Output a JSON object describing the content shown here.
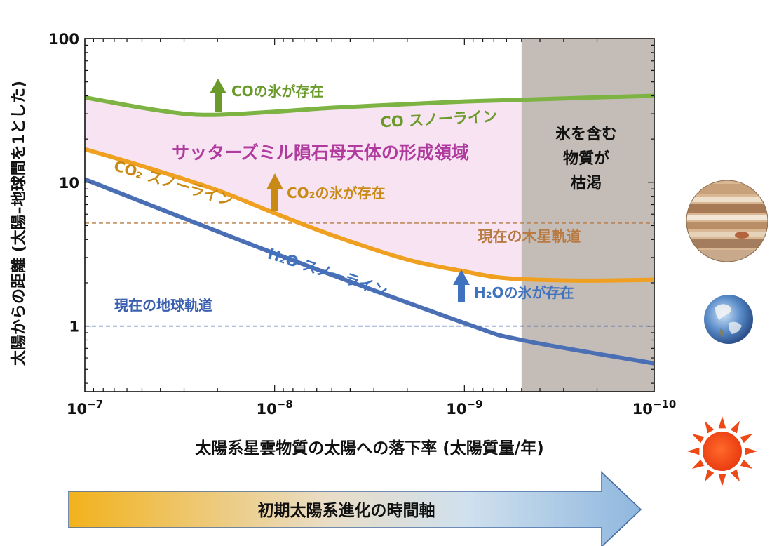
{
  "chart_data": {
    "type": "line",
    "title": "",
    "xlabel": "太陽系星雲物質の太陽への落下率 (太陽質量/年)",
    "ylabel": "太陽からの距離 (太陽–地球間を1とした)",
    "xscale": "log",
    "yscale": "log",
    "x_axis_reversed": true,
    "xlim": [
      1e-07,
      1e-10
    ],
    "ylim": [
      0.35,
      100
    ],
    "x_ticks": [
      {
        "value": 1e-07,
        "base": "10",
        "exp": "−7"
      },
      {
        "value": 1e-08,
        "base": "10",
        "exp": "−8"
      },
      {
        "value": 1e-09,
        "base": "10",
        "exp": "−9"
      },
      {
        "value": 1e-10,
        "base": "10",
        "exp": "−10"
      }
    ],
    "y_ticks": [
      {
        "value": 100,
        "label": "100"
      },
      {
        "value": 10,
        "label": "10"
      },
      {
        "value": 1,
        "label": "1"
      }
    ],
    "series": [
      {
        "name": "CO スノーライン",
        "color": "#7cb342",
        "x": [
          1e-07,
          5e-08,
          3e-08,
          2e-08,
          1e-08,
          5e-09,
          2e-09,
          1e-09,
          5e-10,
          2e-10,
          1e-10
        ],
        "y": [
          39,
          33,
          30,
          29.5,
          31,
          33,
          35,
          36.5,
          37.5,
          39,
          40
        ]
      },
      {
        "name": "CO₂ スノーライン",
        "color": "#f0a020",
        "x": [
          1e-07,
          5e-08,
          2e-08,
          1e-08,
          5e-09,
          2e-09,
          1e-09,
          7e-10,
          5e-10,
          3e-10,
          2e-10,
          1e-10
        ],
        "y": [
          17,
          13,
          8.8,
          6.1,
          4.3,
          2.9,
          2.4,
          2.2,
          2.12,
          2.08,
          2.07,
          2.1
        ]
      },
      {
        "name": "H₂O スノーライン",
        "color": "#4a6fb5",
        "x": [
          1e-07,
          1e-08,
          1e-09,
          5e-10,
          1e-10
        ],
        "y": [
          10.5,
          3.2,
          1.05,
          0.8,
          0.55
        ]
      }
    ],
    "reference_lines": [
      {
        "y": 5.2,
        "label": "現在の木星軌道",
        "color": "#b87a40"
      },
      {
        "y": 1.0,
        "label": "現在の地球軌道",
        "color": "#3a5fb0"
      }
    ],
    "depleted_region": {
      "x_from": 5e-10,
      "x_to": 1e-10,
      "label_lines": [
        "氷を含む",
        "物質が",
        "枯渇"
      ],
      "color": "#c4bcb6"
    },
    "formation_region": {
      "label": "サッターズミル隕石母天体の形成領域",
      "color": "#f7e3f1"
    },
    "annotations": [
      {
        "text": "COの氷が存在",
        "color": "#6a9a2a"
      },
      {
        "text": "CO₂の氷が存在",
        "color": "#c98a15"
      },
      {
        "text": "H₂Oの氷が存在",
        "color": "#3f72bf"
      }
    ],
    "time_arrow": {
      "label": "初期太陽系進化の時間軸"
    },
    "grid": false
  },
  "icons": {
    "jupiter": "jupiter-icon",
    "earth": "earth-icon",
    "sun": "sun-icon"
  }
}
